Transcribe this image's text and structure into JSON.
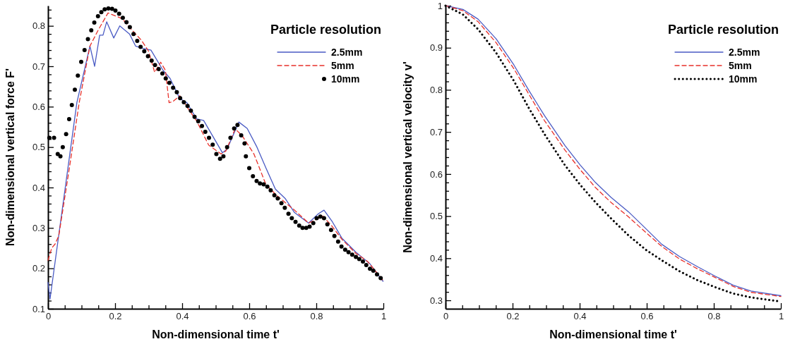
{
  "chart_data": [
    {
      "type": "line",
      "xlabel": "Non-dimensional time t'",
      "ylabel": "Non-dimensional vertical force F'",
      "legend_title": "Particle resolution",
      "legend": "top right",
      "grid": false,
      "xlim": [
        0,
        1
      ],
      "ylim": [
        0.1,
        0.85
      ],
      "xticks": [
        0,
        {
          "value": 0.05,
          "label": null
        },
        {
          "value": 0.1,
          "label": null
        },
        {
          "value": 0.15,
          "label": null
        },
        0.2,
        {
          "value": 0.25,
          "label": null
        },
        {
          "value": 0.3,
          "label": null
        },
        {
          "value": 0.35,
          "label": null
        },
        0.4,
        {
          "value": 0.45,
          "label": null
        },
        {
          "value": 0.5,
          "label": null
        },
        {
          "value": 0.55,
          "label": null
        },
        0.6,
        {
          "value": 0.65,
          "label": null
        },
        {
          "value": 0.7,
          "label": null
        },
        {
          "value": 0.75,
          "label": null
        },
        0.8,
        {
          "value": 0.85,
          "label": null
        },
        {
          "value": 0.9,
          "label": null
        },
        {
          "value": 0.95,
          "label": null
        },
        1
      ],
      "yticks": [
        0.1,
        {
          "value": 0.12,
          "label": null
        },
        {
          "value": 0.14,
          "label": null
        },
        {
          "value": 0.16,
          "label": null
        },
        {
          "value": 0.18,
          "label": null
        },
        0.2,
        {
          "value": 0.22,
          "label": null
        },
        {
          "value": 0.24,
          "label": null
        },
        {
          "value": 0.26,
          "label": null
        },
        {
          "value": 0.28,
          "label": null
        },
        0.3,
        {
          "value": 0.32,
          "label": null
        },
        {
          "value": 0.34,
          "label": null
        },
        {
          "value": 0.36,
          "label": null
        },
        {
          "value": 0.38,
          "label": null
        },
        0.4,
        {
          "value": 0.42,
          "label": null
        },
        {
          "value": 0.44,
          "label": null
        },
        {
          "value": 0.46,
          "label": null
        },
        {
          "value": 0.48,
          "label": null
        },
        0.5,
        {
          "value": 0.52,
          "label": null
        },
        {
          "value": 0.54,
          "label": null
        },
        {
          "value": 0.56,
          "label": null
        },
        {
          "value": 0.58,
          "label": null
        },
        0.6,
        {
          "value": 0.62,
          "label": null
        },
        {
          "value": 0.64,
          "label": null
        },
        {
          "value": 0.66,
          "label": null
        },
        {
          "value": 0.68,
          "label": null
        },
        0.7,
        {
          "value": 0.72,
          "label": null
        },
        {
          "value": 0.74,
          "label": null
        },
        {
          "value": 0.76,
          "label": null
        },
        {
          "value": 0.78,
          "label": null
        },
        0.8,
        {
          "value": 0.82,
          "label": null
        },
        {
          "value": 0.84,
          "label": null
        }
      ],
      "series": [
        {
          "name": "2.5mm",
          "color": "#4a5bc4",
          "line_style": "solid",
          "x": [
            0,
            0.006,
            0.086,
            0.125,
            0.139,
            0.154,
            0.164,
            0.175,
            0.196,
            0.214,
            0.243,
            0.261,
            0.279,
            0.307,
            0.343,
            0.364,
            0.393,
            0.414,
            0.443,
            0.464,
            0.52,
            0.534,
            0.569,
            0.594,
            0.623,
            0.65,
            0.678,
            0.707,
            0.735,
            0.777,
            0.806,
            0.823,
            0.848,
            0.876,
            0.918,
            0.96,
            0.999
          ],
          "values": [
            0.165,
            0.124,
            0.61,
            0.75,
            0.7,
            0.777,
            0.777,
            0.81,
            0.77,
            0.8,
            0.78,
            0.75,
            0.745,
            0.74,
            0.69,
            0.67,
            0.62,
            0.61,
            0.57,
            0.566,
            0.486,
            0.495,
            0.562,
            0.546,
            0.5,
            0.448,
            0.396,
            0.373,
            0.338,
            0.312,
            0.335,
            0.344,
            0.315,
            0.275,
            0.24,
            0.211,
            0.168
          ]
        },
        {
          "name": "5mm",
          "color": "#e8302a",
          "line_style": "dashed",
          "x": [
            0,
            0.011,
            0.021,
            0.032,
            0.064,
            0.093,
            0.125,
            0.15,
            0.179,
            0.221,
            0.25,
            0.279,
            0.3,
            0.318,
            0.336,
            0.35,
            0.361,
            0.371,
            0.393,
            0.414,
            0.443,
            0.479,
            0.516,
            0.53,
            0.558,
            0.579,
            0.614,
            0.65,
            0.685,
            0.735,
            0.777,
            0.82,
            0.848,
            0.876,
            0.918,
            0.953,
            0.999
          ],
          "values": [
            0.22,
            0.25,
            0.26,
            0.28,
            0.45,
            0.61,
            0.75,
            0.79,
            0.832,
            0.818,
            0.79,
            0.764,
            0.737,
            0.685,
            0.71,
            0.69,
            0.61,
            0.612,
            0.627,
            0.6,
            0.565,
            0.505,
            0.483,
            0.49,
            0.545,
            0.528,
            0.483,
            0.407,
            0.378,
            0.344,
            0.312,
            0.329,
            0.303,
            0.272,
            0.237,
            0.217,
            0.17
          ]
        },
        {
          "name": "10mm",
          "color": "#000000",
          "type": "scatter",
          "marker": "circle",
          "x": [
            0.004,
            0.018,
            0.029,
            0.037,
            0.044,
            0.054,
            0.063,
            0.071,
            0.08,
            0.089,
            0.099,
            0.109,
            0.119,
            0.129,
            0.138,
            0.149,
            0.159,
            0.169,
            0.18,
            0.191,
            0.201,
            0.212,
            0.223,
            0.234,
            0.244,
            0.255,
            0.266,
            0.276,
            0.287,
            0.298,
            0.309,
            0.319,
            0.33,
            0.341,
            0.351,
            0.362,
            0.373,
            0.384,
            0.394,
            0.405,
            0.416,
            0.426,
            0.437,
            0.448,
            0.459,
            0.469,
            0.48,
            0.491,
            0.502,
            0.513,
            0.523,
            0.534,
            0.544,
            0.555,
            0.565,
            0.576,
            0.586,
            0.59,
            0.6,
            0.611,
            0.622,
            0.632,
            0.643,
            0.654,
            0.664,
            0.675,
            0.685,
            0.696,
            0.706,
            0.717,
            0.727,
            0.738,
            0.749,
            0.759,
            0.77,
            0.78,
            0.791,
            0.801,
            0.812,
            0.823,
            0.833,
            0.844,
            0.854,
            0.865,
            0.875,
            0.886,
            0.896,
            0.907,
            0.918,
            0.928,
            0.939,
            0.949,
            0.96,
            0.97,
            0.981,
            0.992
          ],
          "values": [
            0.523,
            0.523,
            0.483,
            0.477,
            0.5,
            0.532,
            0.569,
            0.604,
            0.642,
            0.677,
            0.711,
            0.74,
            0.767,
            0.789,
            0.808,
            0.824,
            0.834,
            0.841,
            0.843,
            0.842,
            0.838,
            0.83,
            0.82,
            0.809,
            0.797,
            0.78,
            0.763,
            0.748,
            0.737,
            0.725,
            0.714,
            0.703,
            0.693,
            0.682,
            0.67,
            0.659,
            0.647,
            0.636,
            0.621,
            0.611,
            0.602,
            0.59,
            0.575,
            0.564,
            0.552,
            0.538,
            0.523,
            0.506,
            0.483,
            0.471,
            0.477,
            0.5,
            0.523,
            0.546,
            0.555,
            0.529,
            0.509,
            0.477,
            0.448,
            0.428,
            0.416,
            0.41,
            0.408,
            0.402,
            0.393,
            0.381,
            0.373,
            0.361,
            0.35,
            0.335,
            0.324,
            0.315,
            0.306,
            0.3,
            0.3,
            0.303,
            0.312,
            0.324,
            0.328,
            0.324,
            0.309,
            0.295,
            0.28,
            0.266,
            0.254,
            0.246,
            0.24,
            0.234,
            0.228,
            0.223,
            0.217,
            0.208,
            0.199,
            0.194,
            0.185,
            0.176
          ]
        }
      ]
    },
    {
      "type": "line",
      "xlabel": "Non-dimensional time t'",
      "ylabel": "Non-dimensional vertical velocity v'",
      "legend_title": "Particle resolution",
      "legend": "top right",
      "grid": false,
      "xlim": [
        0,
        1
      ],
      "ylim": [
        0.28,
        1
      ],
      "xticks": [
        0,
        {
          "value": 0.05,
          "label": null
        },
        {
          "value": 0.1,
          "label": null
        },
        {
          "value": 0.15,
          "label": null
        },
        0.2,
        {
          "value": 0.25,
          "label": null
        },
        {
          "value": 0.3,
          "label": null
        },
        {
          "value": 0.35,
          "label": null
        },
        0.4,
        {
          "value": 0.45,
          "label": null
        },
        {
          "value": 0.5,
          "label": null
        },
        {
          "value": 0.55,
          "label": null
        },
        0.6,
        {
          "value": 0.65,
          "label": null
        },
        {
          "value": 0.7,
          "label": null
        },
        {
          "value": 0.75,
          "label": null
        },
        0.8,
        {
          "value": 0.85,
          "label": null
        },
        {
          "value": 0.9,
          "label": null
        },
        {
          "value": 0.95,
          "label": null
        },
        1
      ],
      "yticks": [
        0.3,
        {
          "value": 0.32,
          "label": null
        },
        {
          "value": 0.34,
          "label": null
        },
        {
          "value": 0.36,
          "label": null
        },
        {
          "value": 0.38,
          "label": null
        },
        0.4,
        {
          "value": 0.42,
          "label": null
        },
        {
          "value": 0.44,
          "label": null
        },
        {
          "value": 0.46,
          "label": null
        },
        {
          "value": 0.48,
          "label": null
        },
        0.5,
        {
          "value": 0.52,
          "label": null
        },
        {
          "value": 0.54,
          "label": null
        },
        {
          "value": 0.56,
          "label": null
        },
        {
          "value": 0.58,
          "label": null
        },
        0.6,
        {
          "value": 0.62,
          "label": null
        },
        {
          "value": 0.64,
          "label": null
        },
        {
          "value": 0.66,
          "label": null
        },
        {
          "value": 0.68,
          "label": null
        },
        0.7,
        {
          "value": 0.72,
          "label": null
        },
        {
          "value": 0.74,
          "label": null
        },
        {
          "value": 0.76,
          "label": null
        },
        {
          "value": 0.78,
          "label": null
        },
        0.8,
        {
          "value": 0.82,
          "label": null
        },
        {
          "value": 0.84,
          "label": null
        },
        {
          "value": 0.86,
          "label": null
        },
        {
          "value": 0.88,
          "label": null
        },
        0.9,
        {
          "value": 0.92,
          "label": null
        },
        {
          "value": 0.94,
          "label": null
        },
        {
          "value": 0.96,
          "label": null
        },
        {
          "value": 0.98,
          "label": null
        },
        1
      ],
      "series": [
        {
          "name": "2.5mm",
          "color": "#4a5bc4",
          "line_style": "solid",
          "x": [
            0,
            0.052,
            0.097,
            0.151,
            0.204,
            0.249,
            0.295,
            0.356,
            0.402,
            0.447,
            0.493,
            0.546,
            0.599,
            0.645,
            0.698,
            0.751,
            0.805,
            0.858,
            0.911,
            1
          ],
          "values": [
            1,
            0.991,
            0.968,
            0.921,
            0.859,
            0.798,
            0.739,
            0.668,
            0.621,
            0.58,
            0.545,
            0.51,
            0.469,
            0.433,
            0.404,
            0.38,
            0.357,
            0.336,
            0.322,
            0.311
          ]
        },
        {
          "name": "5mm",
          "color": "#e8302a",
          "line_style": "dashed",
          "x": [
            0,
            0.052,
            0.097,
            0.151,
            0.204,
            0.249,
            0.295,
            0.356,
            0.402,
            0.447,
            0.493,
            0.546,
            0.599,
            0.645,
            0.698,
            0.751,
            0.805,
            0.858,
            0.911,
            1
          ],
          "values": [
            1,
            0.988,
            0.962,
            0.912,
            0.85,
            0.789,
            0.727,
            0.657,
            0.61,
            0.568,
            0.533,
            0.498,
            0.46,
            0.428,
            0.398,
            0.375,
            0.354,
            0.333,
            0.319,
            0.309
          ]
        },
        {
          "name": "10mm",
          "color": "#000000",
          "line_style": "dotted",
          "x": [
            0,
            0.052,
            0.097,
            0.151,
            0.204,
            0.249,
            0.295,
            0.356,
            0.402,
            0.447,
            0.493,
            0.546,
            0.599,
            0.645,
            0.698,
            0.751,
            0.805,
            0.858,
            0.911,
            1
          ],
          "values": [
            1,
            0.979,
            0.944,
            0.888,
            0.821,
            0.756,
            0.695,
            0.621,
            0.574,
            0.533,
            0.495,
            0.454,
            0.419,
            0.395,
            0.369,
            0.348,
            0.331,
            0.316,
            0.307,
            0.297
          ]
        }
      ]
    }
  ]
}
